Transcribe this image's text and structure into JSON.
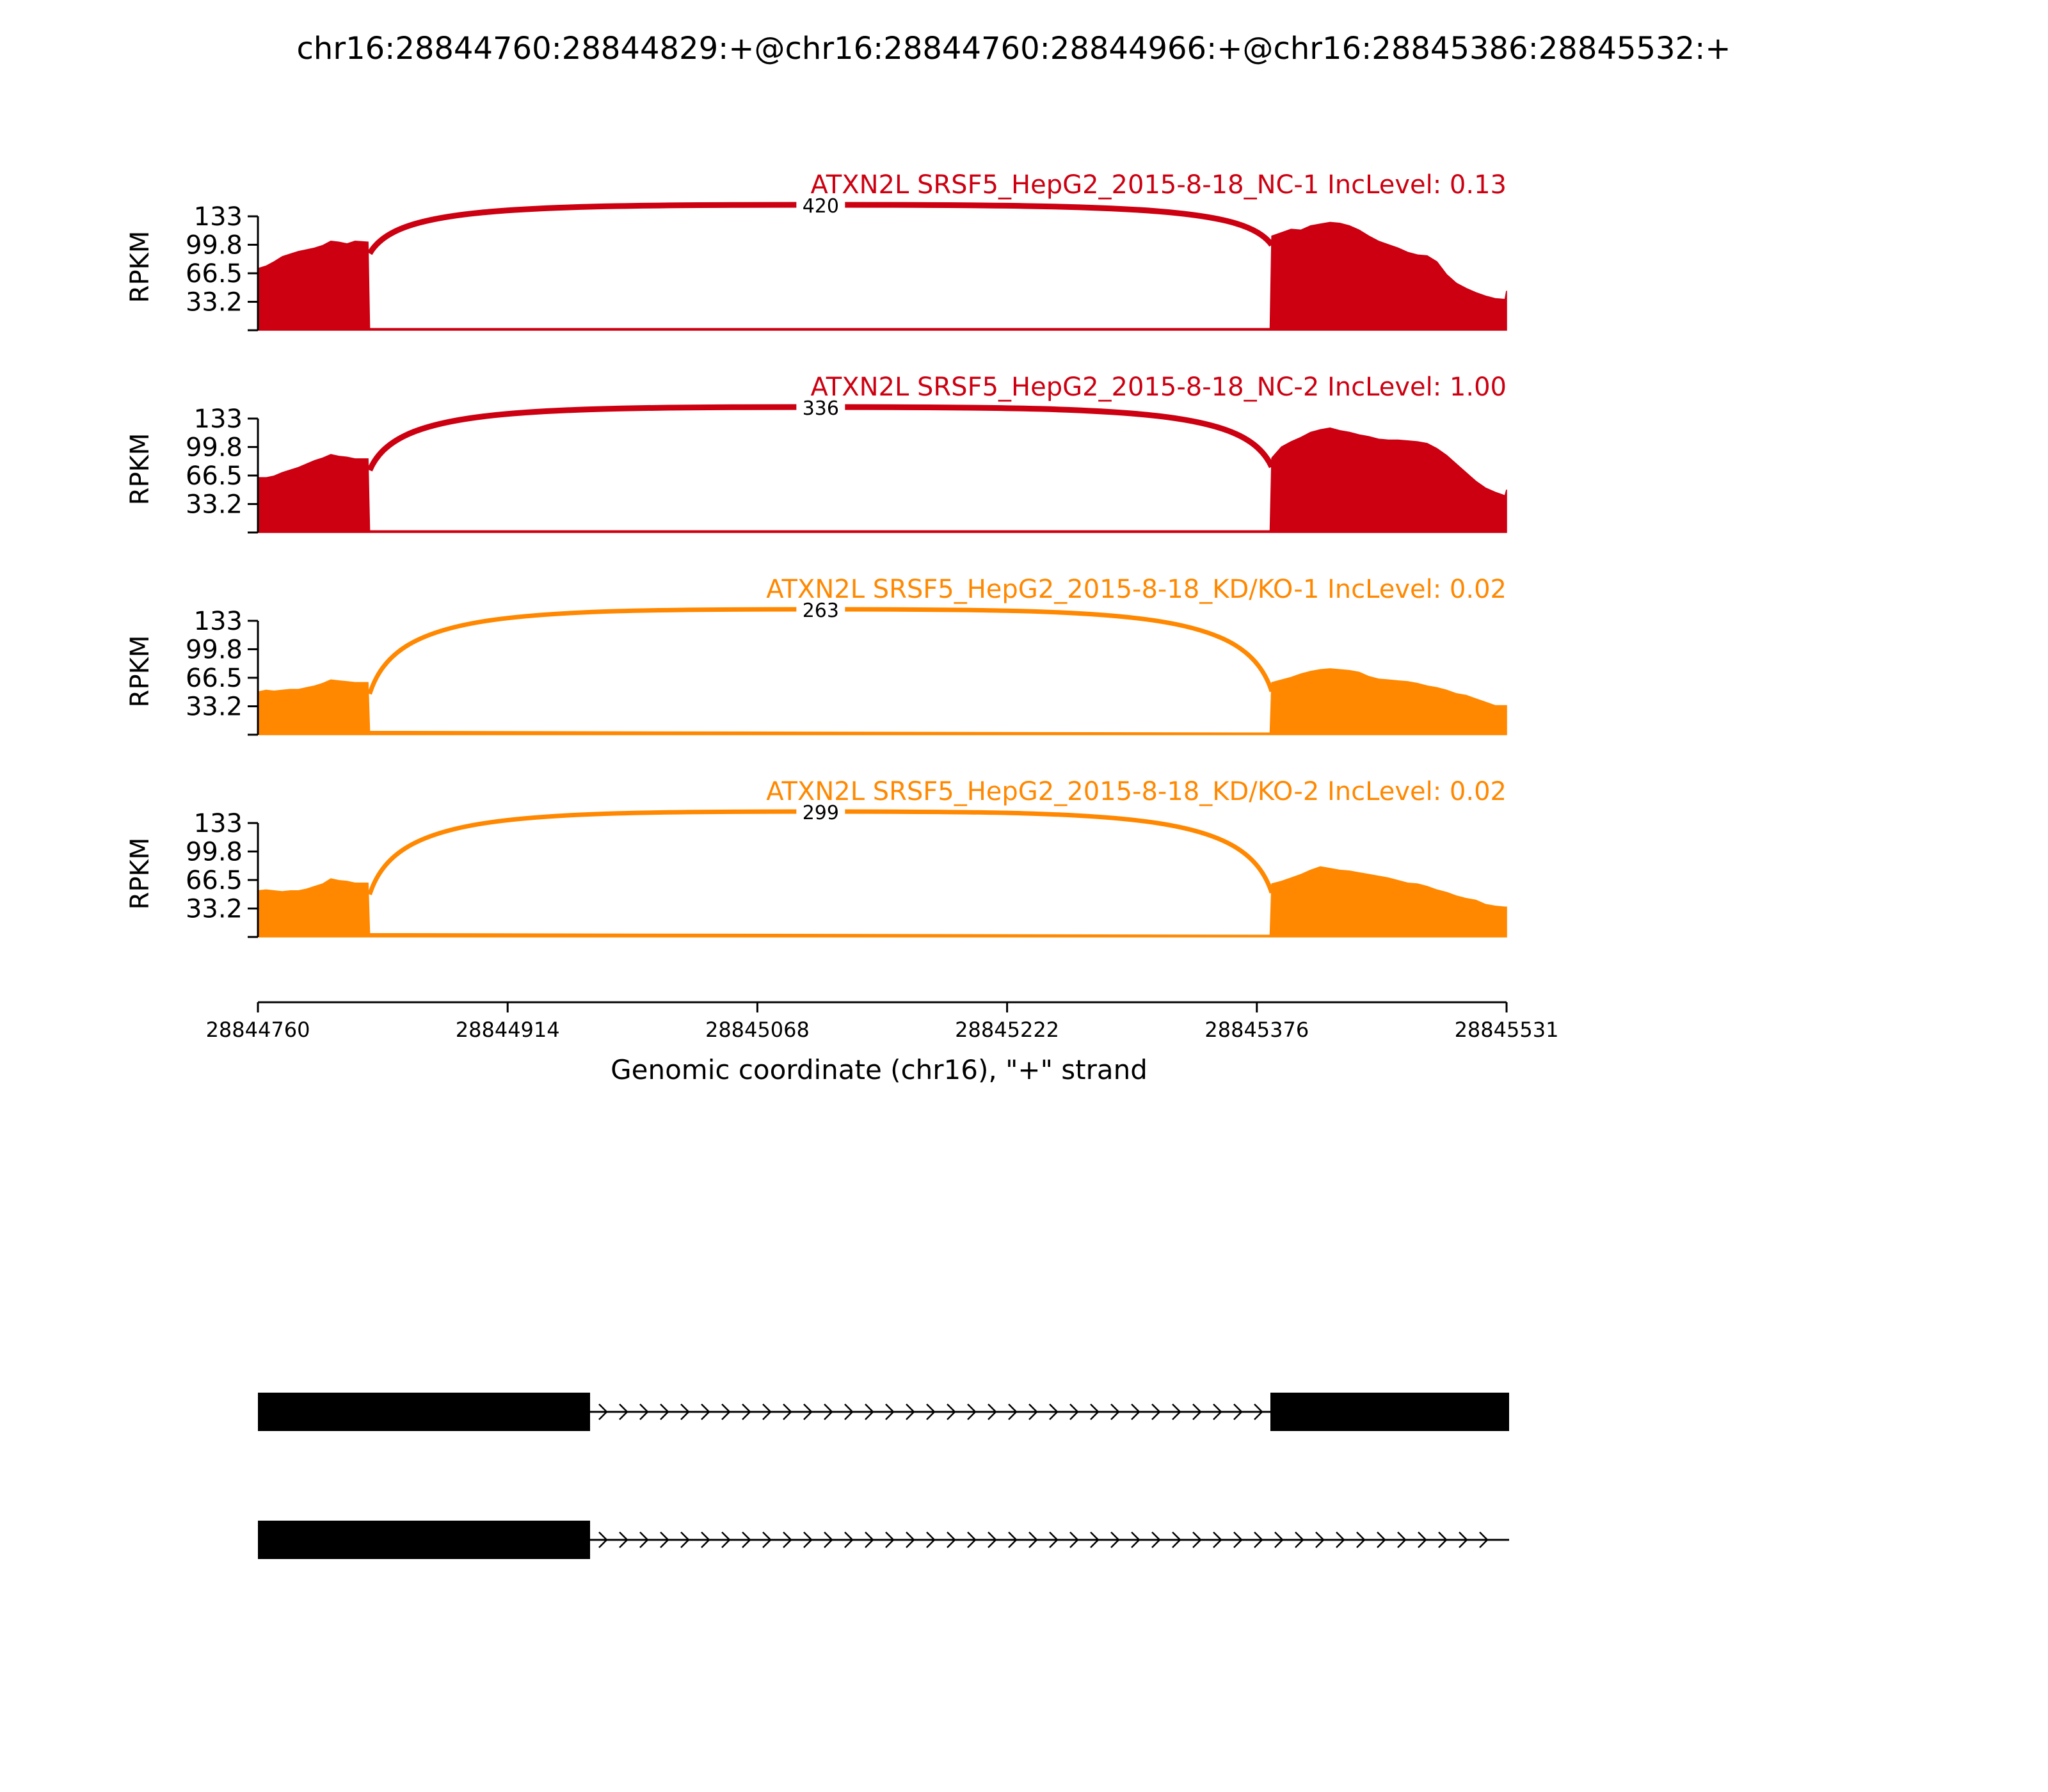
{
  "title": "chr16:28844760:28844829:+@chr16:28844760:28844966:+@chr16:28845386:28845532:+",
  "chart_data": {
    "type": "area",
    "ylabel": "RPKM",
    "yticks": [
      "133",
      "99.8",
      "66.5",
      "33.2"
    ],
    "ylim": [
      0,
      133
    ],
    "xlabel": "Genomic coordinate (chr16), \"+\" strand",
    "xticks": [
      "28844760",
      "28844914",
      "28845068",
      "28845222",
      "28845376",
      "28845531"
    ],
    "xlim": [
      28844760,
      28845531
    ],
    "exon_regions": [
      [
        28844760,
        28844829
      ],
      [
        28845386,
        28845532
      ]
    ],
    "colors": {
      "control": "#cc0011",
      "knockdown": "#ff8800"
    },
    "series": [
      {
        "name": "ATXN2L SRSF5_HepG2_2015-8-18_NC-1 IncLevel: 0.13",
        "group": "control",
        "junction_count": "420",
        "coverage": [
          [
            28844760,
            72
          ],
          [
            28844765,
            75
          ],
          [
            28844770,
            80
          ],
          [
            28844775,
            86
          ],
          [
            28844780,
            89
          ],
          [
            28844785,
            92
          ],
          [
            28844790,
            94
          ],
          [
            28844795,
            96
          ],
          [
            28844800,
            99
          ],
          [
            28844805,
            104
          ],
          [
            28844810,
            103
          ],
          [
            28844815,
            101
          ],
          [
            28844820,
            104
          ],
          [
            28844828,
            103
          ],
          [
            28844829,
            2
          ],
          [
            28845385,
            2
          ],
          [
            28845386,
            110
          ],
          [
            28845392,
            114
          ],
          [
            28845398,
            118
          ],
          [
            28845404,
            117
          ],
          [
            28845410,
            122
          ],
          [
            28845416,
            124
          ],
          [
            28845422,
            126
          ],
          [
            28845428,
            125
          ],
          [
            28845434,
            122
          ],
          [
            28845440,
            117
          ],
          [
            28845446,
            110
          ],
          [
            28845452,
            104
          ],
          [
            28845458,
            100
          ],
          [
            28845464,
            96
          ],
          [
            28845470,
            91
          ],
          [
            28845476,
            88
          ],
          [
            28845482,
            87
          ],
          [
            28845488,
            80
          ],
          [
            28845494,
            65
          ],
          [
            28845500,
            55
          ],
          [
            28845506,
            49
          ],
          [
            28845512,
            44
          ],
          [
            28845518,
            40
          ],
          [
            28845524,
            37
          ],
          [
            28845530,
            36
          ],
          [
            28845531,
            46
          ]
        ]
      },
      {
        "name": "ATXN2L SRSF5_HepG2_2015-8-18_NC-2 IncLevel: 1.00",
        "group": "control",
        "junction_count": "336",
        "coverage": [
          [
            28844760,
            64
          ],
          [
            28844765,
            64
          ],
          [
            28844770,
            66
          ],
          [
            28844775,
            70
          ],
          [
            28844780,
            73
          ],
          [
            28844785,
            76
          ],
          [
            28844790,
            80
          ],
          [
            28844795,
            84
          ],
          [
            28844800,
            87
          ],
          [
            28844805,
            91
          ],
          [
            28844810,
            89
          ],
          [
            28844815,
            88
          ],
          [
            28844820,
            86
          ],
          [
            28844828,
            86
          ],
          [
            28844829,
            2
          ],
          [
            28845385,
            2
          ],
          [
            28845386,
            87
          ],
          [
            28845392,
            100
          ],
          [
            28845398,
            106
          ],
          [
            28845404,
            111
          ],
          [
            28845410,
            117
          ],
          [
            28845416,
            120
          ],
          [
            28845422,
            122
          ],
          [
            28845428,
            119
          ],
          [
            28845434,
            117
          ],
          [
            28845440,
            114
          ],
          [
            28845446,
            112
          ],
          [
            28845452,
            109
          ],
          [
            28845458,
            108
          ],
          [
            28845464,
            108
          ],
          [
            28845470,
            107
          ],
          [
            28845476,
            106
          ],
          [
            28845482,
            104
          ],
          [
            28845488,
            98
          ],
          [
            28845494,
            90
          ],
          [
            28845500,
            80
          ],
          [
            28845506,
            70
          ],
          [
            28845512,
            60
          ],
          [
            28845518,
            52
          ],
          [
            28845524,
            47
          ],
          [
            28845530,
            43
          ],
          [
            28845531,
            50
          ]
        ]
      },
      {
        "name": "ATXN2L SRSF5_HepG2_2015-8-18_KD/KO-1 IncLevel: 0.02",
        "group": "knockdown",
        "junction_count": "263",
        "coverage": [
          [
            28844760,
            50
          ],
          [
            28844765,
            52
          ],
          [
            28844770,
            51
          ],
          [
            28844775,
            52
          ],
          [
            28844780,
            53
          ],
          [
            28844785,
            53
          ],
          [
            28844790,
            55
          ],
          [
            28844795,
            57
          ],
          [
            28844800,
            60
          ],
          [
            28844805,
            64
          ],
          [
            28844810,
            63
          ],
          [
            28844815,
            62
          ],
          [
            28844820,
            61
          ],
          [
            28844828,
            61
          ],
          [
            28844829,
            4
          ],
          [
            28845385,
            2
          ],
          [
            28845386,
            61
          ],
          [
            28845392,
            64
          ],
          [
            28845398,
            67
          ],
          [
            28845404,
            71
          ],
          [
            28845410,
            74
          ],
          [
            28845416,
            76
          ],
          [
            28845422,
            77
          ],
          [
            28845428,
            76
          ],
          [
            28845434,
            75
          ],
          [
            28845440,
            73
          ],
          [
            28845446,
            68
          ],
          [
            28845452,
            65
          ],
          [
            28845458,
            64
          ],
          [
            28845464,
            63
          ],
          [
            28845470,
            62
          ],
          [
            28845476,
            60
          ],
          [
            28845482,
            57
          ],
          [
            28845488,
            55
          ],
          [
            28845494,
            52
          ],
          [
            28845500,
            48
          ],
          [
            28845506,
            46
          ],
          [
            28845512,
            42
          ],
          [
            28845518,
            38
          ],
          [
            28845524,
            34
          ],
          [
            28845530,
            34
          ],
          [
            28845531,
            34
          ]
        ]
      },
      {
        "name": "ATXN2L SRSF5_HepG2_2015-8-18_KD/KO-2 IncLevel: 0.02",
        "group": "knockdown",
        "junction_count": "299",
        "coverage": [
          [
            28844760,
            54
          ],
          [
            28844765,
            55
          ],
          [
            28844770,
            54
          ],
          [
            28844775,
            53
          ],
          [
            28844780,
            54
          ],
          [
            28844785,
            54
          ],
          [
            28844790,
            56
          ],
          [
            28844795,
            59
          ],
          [
            28844800,
            62
          ],
          [
            28844805,
            68
          ],
          [
            28844810,
            66
          ],
          [
            28844815,
            65
          ],
          [
            28844820,
            63
          ],
          [
            28844828,
            63
          ],
          [
            28844829,
            4
          ],
          [
            28845385,
            2
          ],
          [
            28845386,
            62
          ],
          [
            28845392,
            65
          ],
          [
            28845398,
            69
          ],
          [
            28845404,
            73
          ],
          [
            28845410,
            78
          ],
          [
            28845416,
            82
          ],
          [
            28845422,
            80
          ],
          [
            28845428,
            78
          ],
          [
            28845434,
            77
          ],
          [
            28845440,
            75
          ],
          [
            28845446,
            73
          ],
          [
            28845452,
            71
          ],
          [
            28845458,
            69
          ],
          [
            28845464,
            66
          ],
          [
            28845470,
            63
          ],
          [
            28845476,
            62
          ],
          [
            28845482,
            59
          ],
          [
            28845488,
            55
          ],
          [
            28845494,
            52
          ],
          [
            28845500,
            48
          ],
          [
            28845506,
            45
          ],
          [
            28845512,
            43
          ],
          [
            28845518,
            38
          ],
          [
            28845524,
            36
          ],
          [
            28845530,
            35
          ],
          [
            28845531,
            35
          ]
        ]
      }
    ],
    "isoforms": [
      {
        "exons": [
          [
            28844760,
            28844966
          ],
          [
            28845386,
            28845532
          ]
        ],
        "strand": "+"
      },
      {
        "exons": [
          [
            28844760,
            28844966
          ]
        ],
        "strand": "+"
      }
    ]
  }
}
